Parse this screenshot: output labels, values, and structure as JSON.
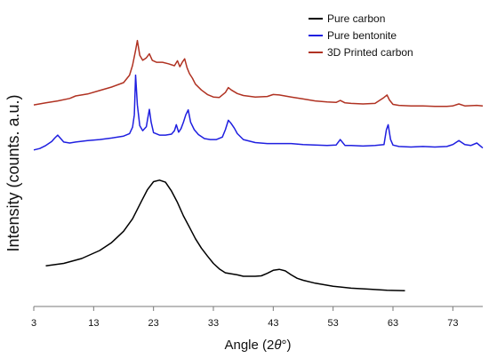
{
  "chart_data": {
    "type": "line",
    "xlabel": "Angle (2θ°)",
    "ylabel": "Intensity (counts. a.u.)",
    "xlim": [
      3,
      78
    ],
    "xticks": [
      3,
      13,
      23,
      33,
      43,
      53,
      63,
      73
    ],
    "yticks_shown": false,
    "grid": false,
    "legend_position": "top-right",
    "series": [
      {
        "name": "Pure carbon",
        "color": "#000000",
        "x": [
          5,
          8,
          11,
          14,
          16,
          18,
          19.5,
          21,
          22,
          23,
          24,
          25,
          26,
          27,
          28,
          29,
          30,
          31,
          32,
          33,
          34,
          35,
          36,
          37,
          38,
          39,
          40,
          41,
          42,
          43,
          44,
          45,
          46,
          47,
          48,
          50,
          53,
          56,
          59,
          62,
          65
        ],
        "y": [
          5.5,
          6.0,
          7.0,
          8.6,
          10.2,
          12.5,
          15.0,
          18.6,
          20.9,
          22.5,
          22.8,
          22.4,
          20.6,
          18.3,
          15.6,
          13.3,
          11.0,
          9.1,
          7.5,
          6.0,
          4.9,
          4.1,
          3.9,
          3.7,
          3.4,
          3.4,
          3.4,
          3.5,
          4.0,
          4.6,
          4.8,
          4.5,
          3.7,
          3.0,
          2.6,
          2.0,
          1.4,
          1.0,
          0.8,
          0.6,
          0.5
        ]
      },
      {
        "name": "Pure bentonite",
        "color": "#1f1fe0",
        "x": [
          3,
          4,
          5,
          6,
          6.5,
          7,
          7.5,
          8,
          9,
          10,
          12,
          14,
          16,
          18,
          19,
          19.5,
          19.8,
          20.0,
          20.3,
          20.7,
          21.2,
          21.8,
          22.0,
          22.3,
          22.6,
          23,
          24,
          25,
          26,
          26.5,
          26.8,
          27.2,
          27.6,
          28,
          28.4,
          28.8,
          29.2,
          29.8,
          30.5,
          31.5,
          32.5,
          33.5,
          34.5,
          35.0,
          35.5,
          36.0,
          36.5,
          37,
          38,
          40,
          42,
          44,
          46,
          48,
          50,
          52,
          53.5,
          54.2,
          55,
          56,
          58,
          60,
          61.5,
          61.9,
          62.2,
          62.6,
          63,
          64,
          66,
          68,
          70,
          72,
          73,
          74,
          75,
          76,
          77,
          78
        ],
        "y": [
          28.9,
          29.2,
          29.8,
          30.6,
          31.3,
          31.9,
          31.2,
          30.5,
          30.3,
          30.5,
          30.8,
          31.0,
          31.3,
          31.7,
          32.2,
          33.5,
          36.0,
          44.0,
          38.0,
          33.8,
          32.8,
          33.6,
          35.0,
          37.1,
          34.5,
          32.4,
          31.9,
          31.9,
          32.1,
          32.8,
          34.0,
          32.5,
          33.2,
          34.5,
          36.0,
          37.0,
          34.5,
          33.0,
          32.0,
          31.2,
          31.0,
          31.0,
          31.5,
          33.0,
          34.9,
          34.2,
          33.3,
          32.2,
          31.0,
          30.4,
          30.2,
          30.2,
          30.2,
          30.0,
          29.9,
          29.8,
          29.9,
          31.0,
          29.8,
          29.8,
          29.7,
          29.8,
          30.0,
          33.0,
          34.0,
          31.0,
          29.9,
          29.6,
          29.5,
          29.6,
          29.5,
          29.6,
          30.0,
          30.8,
          30.0,
          29.8,
          30.3,
          29.3
        ]
      },
      {
        "name": "3D Printed carbon",
        "color": "#b03222",
        "x": [
          3,
          5,
          7,
          9,
          10,
          12,
          14,
          16,
          18,
          19,
          19.5,
          20.0,
          20.3,
          20.7,
          21.2,
          21.8,
          22.3,
          22.8,
          23.5,
          24.5,
          25.5,
          26.5,
          27.0,
          27.4,
          27.8,
          28.2,
          28.6,
          29,
          29.5,
          30,
          31,
          32,
          33,
          34,
          35,
          35.5,
          36,
          37,
          38,
          40,
          42,
          43,
          44,
          46,
          48,
          50,
          52,
          53.5,
          54.2,
          55,
          56,
          58,
          60,
          61.5,
          62,
          62.4,
          63,
          64,
          66,
          68,
          70,
          72,
          73,
          74,
          75,
          77,
          78
        ],
        "y": [
          38.0,
          38.4,
          38.8,
          39.3,
          39.8,
          40.2,
          40.9,
          41.6,
          42.5,
          44.0,
          46.0,
          49.0,
          51.0,
          48.0,
          47.0,
          47.5,
          48.3,
          47.0,
          46.6,
          46.6,
          46.3,
          45.9,
          46.9,
          45.7,
          46.6,
          47.3,
          45.5,
          44.3,
          43.4,
          42.2,
          41.0,
          40.1,
          39.6,
          39.5,
          40.5,
          41.5,
          41.0,
          40.3,
          39.9,
          39.6,
          39.7,
          40.1,
          40.0,
          39.6,
          39.2,
          38.8,
          38.6,
          38.5,
          38.9,
          38.4,
          38.3,
          38.2,
          38.3,
          39.5,
          40.0,
          39.0,
          38.1,
          37.9,
          37.8,
          37.8,
          37.7,
          37.7,
          37.8,
          38.2,
          37.8,
          37.9,
          37.8
        ]
      }
    ]
  }
}
